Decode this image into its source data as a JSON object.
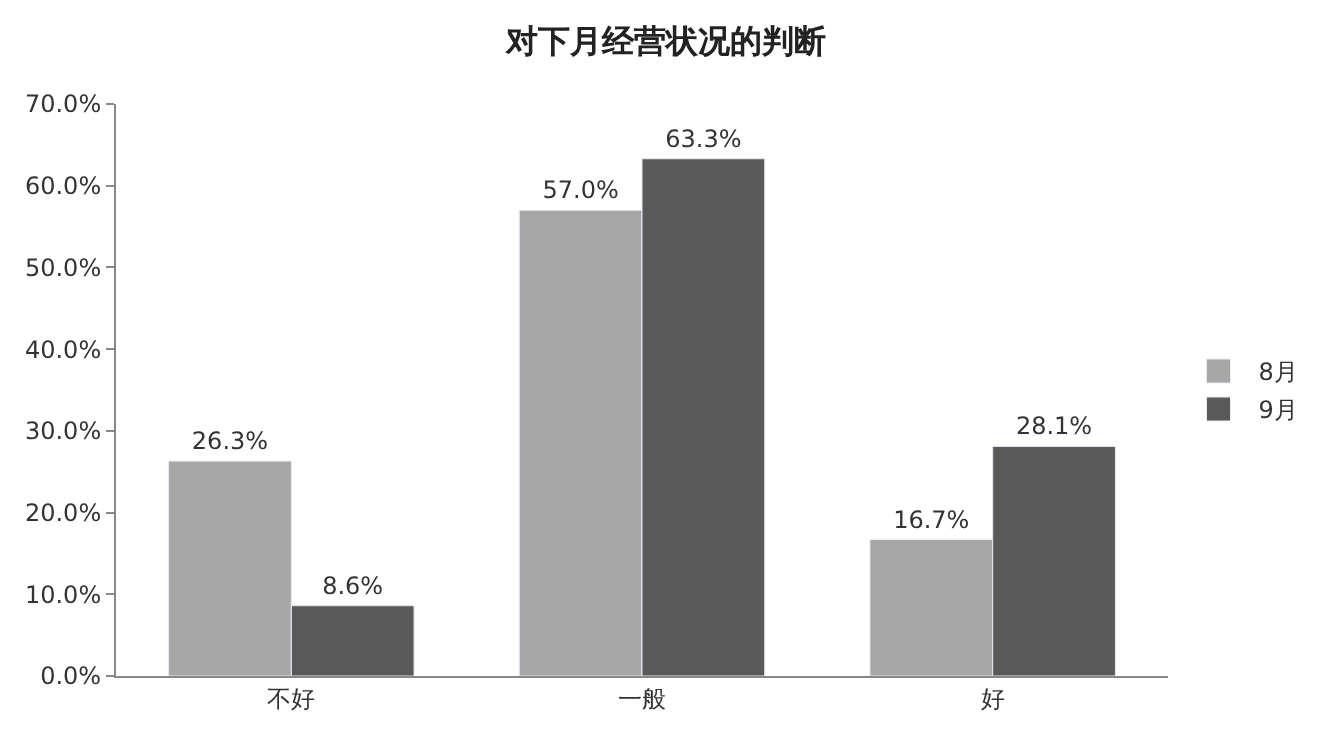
{
  "chart_data": {
    "type": "bar",
    "title": "对下月经营状况的判断",
    "categories": [
      "不好",
      "一般",
      "好"
    ],
    "series": [
      {
        "name": "8月",
        "color": "#a6a6a6",
        "values": [
          26.3,
          57.0,
          16.7
        ],
        "value_labels": [
          "26.3%",
          "57.0%",
          "16.7%"
        ]
      },
      {
        "name": "9月",
        "color": "#595959",
        "values": [
          8.6,
          63.3,
          28.1
        ],
        "value_labels": [
          "8.6%",
          "63.3%",
          "28.1%"
        ]
      }
    ],
    "ylim": [
      0,
      70
    ],
    "yticks": [
      {
        "value": 0,
        "label": "0.0%"
      },
      {
        "value": 10,
        "label": "10.0%"
      },
      {
        "value": 20,
        "label": "20.0%"
      },
      {
        "value": 30,
        "label": "30.0%"
      },
      {
        "value": 40,
        "label": "40.0%"
      },
      {
        "value": 50,
        "label": "50.0%"
      },
      {
        "value": 60,
        "label": "60.0%"
      },
      {
        "value": 70,
        "label": "70.0%"
      }
    ],
    "legend": "right"
  }
}
